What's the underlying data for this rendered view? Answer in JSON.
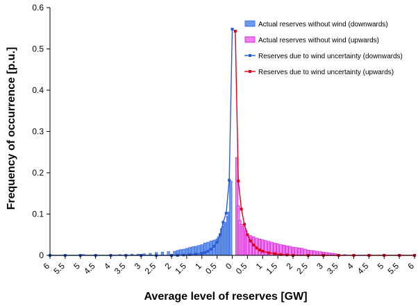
{
  "chart_data": {
    "type": "bar",
    "title": "",
    "xlabel": "Average level of reserves [GW]",
    "ylabel": "Frequency of occurrence [p.u.]",
    "ylim": [
      0,
      0.6
    ],
    "y_ticks": [
      "0",
      "0.1",
      "0.2",
      "0.3",
      "0.4",
      "0.5",
      "0.6"
    ],
    "x_tick_labels": [
      "6",
      "5.5",
      "5",
      "4.5",
      "4",
      "3.5",
      "3",
      "2.5",
      "2",
      "1.5",
      "1",
      "0.5",
      "0",
      "0.5",
      "1",
      "1.5",
      "2",
      "2.5",
      "3",
      "3.5",
      "4",
      "4.5",
      "5",
      "5.5",
      "6"
    ],
    "xlim": [
      -6,
      6
    ],
    "legend_position": "top-right",
    "grid": false,
    "colors": {
      "down_bar": "#6b9bef",
      "down_bar_edge": "#2a5bd7",
      "up_bar": "#f27ef2",
      "up_bar_edge": "#c80fc8",
      "down_line": "#2a5bd7",
      "up_line": "#e0001a"
    },
    "series": [
      {
        "name": "Actual reserves without wind (downwards)",
        "kind": "bar",
        "x": [
          -4.9,
          -3.7,
          -3.5,
          -3.3,
          -3.1,
          -2.9,
          -2.7,
          -2.5,
          -2.3,
          -2.1,
          -1.9,
          -1.8,
          -1.7,
          -1.6,
          -1.5,
          -1.4,
          -1.3,
          -1.2,
          -1.1,
          -1.0,
          -0.9,
          -0.8,
          -0.7,
          -0.6,
          -0.5,
          -0.45,
          -0.4,
          -0.35,
          -0.3,
          -0.25,
          -0.2,
          -0.15,
          -0.1,
          -0.05
        ],
        "values": [
          0.002,
          0.002,
          0.002,
          0.003,
          0.003,
          0.004,
          0.005,
          0.007,
          0.008,
          0.009,
          0.01,
          0.012,
          0.014,
          0.015,
          0.017,
          0.019,
          0.021,
          0.022,
          0.024,
          0.026,
          0.03,
          0.032,
          0.035,
          0.037,
          0.04,
          0.045,
          0.05,
          0.065,
          0.07,
          0.075,
          0.08,
          0.095,
          0.105,
          0.18
        ]
      },
      {
        "name": "Actual reserves without wind (upwards)",
        "kind": "bar",
        "x": [
          0.15,
          0.2,
          0.25,
          0.3,
          0.35,
          0.4,
          0.45,
          0.5,
          0.6,
          0.7,
          0.8,
          0.9,
          1.0,
          1.1,
          1.2,
          1.3,
          1.4,
          1.5,
          1.6,
          1.7,
          1.8,
          1.9,
          2.0,
          2.1,
          2.2,
          2.3,
          2.4,
          2.5,
          2.6,
          2.7,
          2.8,
          2.9,
          3.0,
          3.1,
          3.2,
          3.3,
          3.4,
          3.5,
          3.7
        ],
        "values": [
          0.237,
          0.12,
          0.085,
          0.075,
          0.07,
          0.065,
          0.06,
          0.052,
          0.048,
          0.045,
          0.042,
          0.04,
          0.038,
          0.036,
          0.034,
          0.032,
          0.03,
          0.028,
          0.026,
          0.025,
          0.023,
          0.022,
          0.02,
          0.019,
          0.018,
          0.017,
          0.015,
          0.013,
          0.012,
          0.011,
          0.01,
          0.009,
          0.008,
          0.007,
          0.006,
          0.005,
          0.004,
          0.003,
          0.002
        ]
      },
      {
        "name": "Reserves due to wind uncertainty (downwards)",
        "kind": "line",
        "x": [
          -6,
          -5.5,
          -5,
          -4.5,
          -4,
          -3.5,
          -3,
          -2.5,
          -2,
          -1.8,
          -1.6,
          -1.4,
          -1.2,
          -1.0,
          -0.9,
          -0.8,
          -0.7,
          -0.6,
          -0.5,
          -0.4,
          -0.3,
          -0.2,
          -0.1,
          0
        ],
        "values": [
          0,
          0,
          0,
          0,
          0,
          0,
          0,
          0,
          0,
          0,
          0.001,
          0.002,
          0.003,
          0.005,
          0.007,
          0.01,
          0.015,
          0.022,
          0.032,
          0.05,
          0.08,
          0.102,
          0.182,
          0.548
        ]
      },
      {
        "name": "Reserves due to wind uncertainty (upwards)",
        "kind": "line",
        "x": [
          0.1,
          0.2,
          0.3,
          0.4,
          0.5,
          0.6,
          0.7,
          0.8,
          0.9,
          1.0,
          1.2,
          1.4,
          1.6,
          1.8,
          2.0,
          2.5,
          3.0,
          3.5,
          4.0,
          4.5,
          5.0,
          5.5,
          6.0
        ],
        "values": [
          0.543,
          0.18,
          0.112,
          0.075,
          0.05,
          0.035,
          0.025,
          0.018,
          0.013,
          0.01,
          0.006,
          0.004,
          0.002,
          0.001,
          0,
          0,
          0,
          0,
          0,
          0,
          0,
          0,
          0
        ]
      }
    ]
  }
}
